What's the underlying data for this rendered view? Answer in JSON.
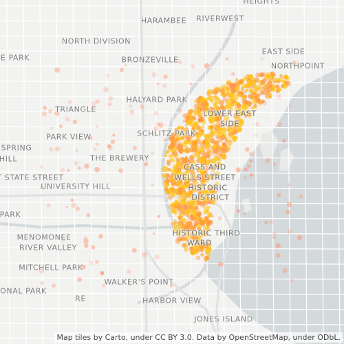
{
  "map": {
    "labels": [
      {
        "text": "HEIGHTS",
        "key": "heights"
      },
      {
        "text": "HARAMBEE",
        "key": "harambee"
      },
      {
        "text": "RIVERWEST",
        "key": "riverwest"
      },
      {
        "text": "NORTH DIVISION",
        "key": "north-division"
      },
      {
        "text": "E PARK",
        "key": "e-park"
      },
      {
        "text": "BRONZEVILLE",
        "key": "bronzeville"
      },
      {
        "text": "EAST SIDE",
        "key": "east-side"
      },
      {
        "text": "NORTHPOINT",
        "key": "northpoint"
      },
      {
        "text": "HALYARD PARK",
        "key": "halyard-park"
      },
      {
        "text": "TRIANGLE",
        "key": "triangle"
      },
      {
        "text": "LOWER EAST",
        "key": "lower-east"
      },
      {
        "text": "SIDE",
        "key": "side"
      },
      {
        "text": "SCHLITZ PARK",
        "key": "schlitz-park"
      },
      {
        "text": "PARK VIEW",
        "key": "park-view"
      },
      {
        "text": "SPRING",
        "key": "spring"
      },
      {
        "text": "HILL",
        "key": "hill"
      },
      {
        "text": "THE BREWERY",
        "key": "the-brewery"
      },
      {
        "text": "CASS AND",
        "key": "cass-and"
      },
      {
        "text": "WELLS STREET",
        "key": "wells-street"
      },
      {
        "text": "T STATE STREET",
        "key": "state-street"
      },
      {
        "text": "HISTORIC",
        "key": "historic"
      },
      {
        "text": "UNIVERSITY HILL",
        "key": "university-hill"
      },
      {
        "text": "DISTRICT",
        "key": "district"
      },
      {
        "text": "PARK",
        "key": "park"
      },
      {
        "text": "HISTORIC THIRD",
        "key": "historic-third"
      },
      {
        "text": "WARD",
        "key": "ward"
      },
      {
        "text": "MENOMONEE",
        "key": "menomonee"
      },
      {
        "text": "RIVER VALLEY",
        "key": "river-valley"
      },
      {
        "text": "MITCHELL PARK",
        "key": "mitchell-park"
      },
      {
        "text": "WALKER'S POINT",
        "key": "walkers-point"
      },
      {
        "text": "ONAL PARK",
        "key": "onal-park"
      },
      {
        "text": "RE",
        "key": "re"
      },
      {
        "text": "HARBOR VIEW",
        "key": "harbor-view"
      },
      {
        "text": "JONES ISLAND",
        "key": "jones-island"
      }
    ],
    "attribution": "Map tiles by Carto, under CC BY 3.0. Data by OpenStreetMap, under ODbL.",
    "colors": {
      "land": "#f2f2f0",
      "water": "#d4dadc",
      "roads": "#ffffff",
      "highways": "#e4e4e4",
      "heat_core": "#ffc21a",
      "heat_mid": "#ff9a3d",
      "heat_outer": "#ff8c66"
    }
  }
}
